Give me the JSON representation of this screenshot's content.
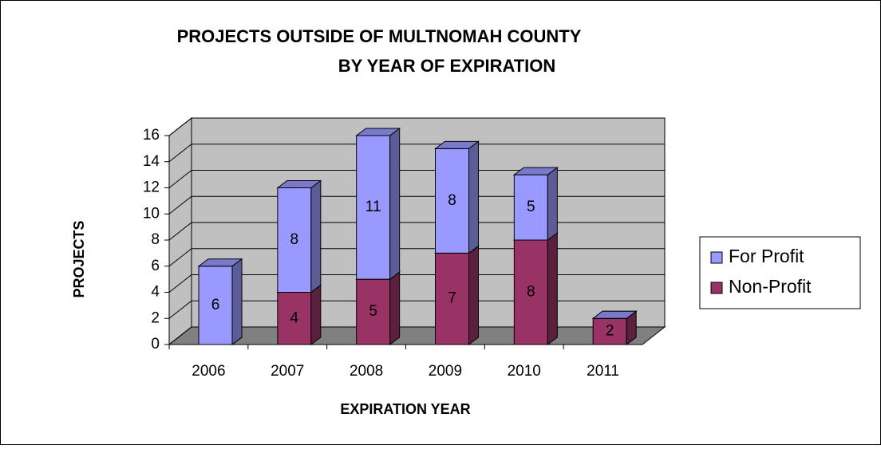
{
  "chart_data": {
    "type": "bar3d_stacked",
    "title": [
      "PROJECTS OUTSIDE OF MULTNOMAH COUNTY",
      "BY YEAR OF EXPIRATION"
    ],
    "x_label": "EXPIRATION YEAR",
    "y_label": "PROJECTS",
    "categories": [
      "2006",
      "2007",
      "2008",
      "2009",
      "2010",
      "2011"
    ],
    "series": [
      {
        "name": "For Profit",
        "color": "#9999ff",
        "values": [
          6,
          8,
          11,
          8,
          5,
          0
        ]
      },
      {
        "name": "Non-Profit",
        "color": "#993366",
        "values": [
          0,
          4,
          5,
          7,
          8,
          2
        ]
      }
    ],
    "ylim": [
      0,
      16
    ],
    "yticks": [
      0,
      2,
      4,
      6,
      8,
      10,
      12,
      14,
      16
    ],
    "grid": true,
    "legend": "right"
  }
}
